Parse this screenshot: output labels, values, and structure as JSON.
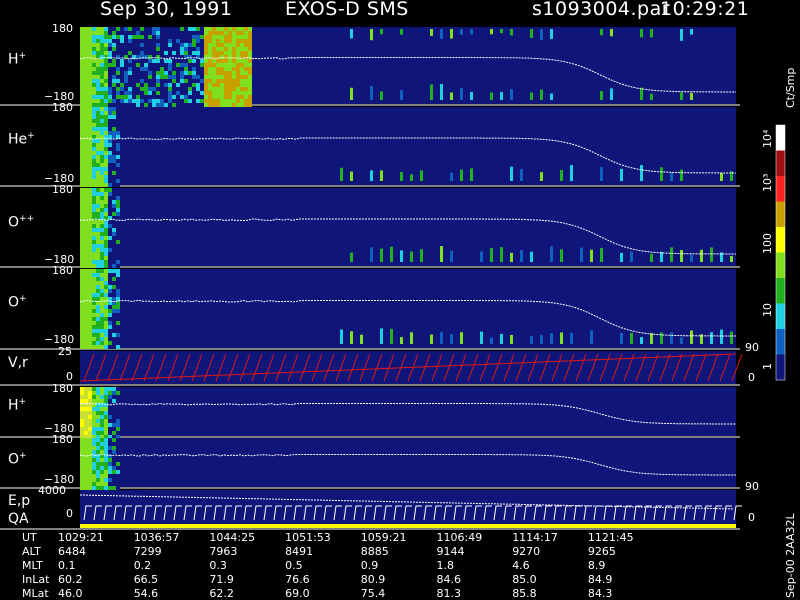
{
  "header": {
    "date": "Sep 30, 1991",
    "instrument": "EXOS-D SMS",
    "file": "s1093004.par",
    "time": "10:29:21"
  },
  "colors": {
    "background": "#000000",
    "panel_fill": "#10157a",
    "trace_line": "#ffffff",
    "velocity_line": "#e01818"
  },
  "colorbar": {
    "unit": "Ct/Smp",
    "labels": [
      "10⁴",
      "10³",
      "100",
      "10",
      "1"
    ],
    "colors": [
      "#ffffff",
      "#a01010",
      "#ff2020",
      "#c8a000",
      "#ffff00",
      "#80e020",
      "#20b020",
      "#20d0e0",
      "#1060c0",
      "#10157a"
    ]
  },
  "footer_code": "Sep-00  2AA32L",
  "chart_data": {
    "type": "heatmap",
    "panels": [
      {
        "label": "H",
        "sup": "+",
        "ymax": "180",
        "ymin": "−180"
      },
      {
        "label": "He",
        "sup": "+",
        "ymax": "180",
        "ymin": "−180"
      },
      {
        "label": "O",
        "sup": "++",
        "ymax": "180",
        "ymin": "−180"
      },
      {
        "label": "O",
        "sup": "+",
        "ymax": "180",
        "ymin": "−180",
        "right_tick": "90"
      },
      {
        "label": "V,r",
        "sup": "",
        "ymax": "25",
        "ymin": "0",
        "right_tick": "0"
      },
      {
        "label": "H",
        "sup": "+",
        "ymax": "180",
        "ymin": "−180"
      },
      {
        "label": "O",
        "sup": "+",
        "ymax": "180",
        "ymin": "−180",
        "right_tick": "90"
      },
      {
        "label": "E,p",
        "sup": "",
        "label2": "QA",
        "ymax": "4000",
        "ymin": "0",
        "right_tick": "0"
      }
    ],
    "ephemeris": {
      "rows": [
        "UT",
        "ALT",
        "MLT",
        "InLat",
        "MLat"
      ],
      "UT": [
        "1029:21",
        "1036:57",
        "1044:25",
        "1051:53",
        "1059:21",
        "1106:49",
        "1114:17",
        "1121:45"
      ],
      "ALT": [
        "6484",
        "7299",
        "7963",
        "8491",
        "8885",
        "9144",
        "9270",
        "9265"
      ],
      "MLT": [
        "0.1",
        "0.2",
        "0.3",
        "0.5",
        "0.9",
        "1.8",
        "4.6",
        "8.9"
      ],
      "InLat": [
        "60.2",
        "66.5",
        "71.9",
        "76.6",
        "80.9",
        "84.6",
        "85.0",
        "84.9"
      ],
      "MLat": [
        "46.0",
        "54.6",
        "62.2",
        "69.0",
        "75.4",
        "81.3",
        "85.8",
        "84.3"
      ]
    }
  }
}
